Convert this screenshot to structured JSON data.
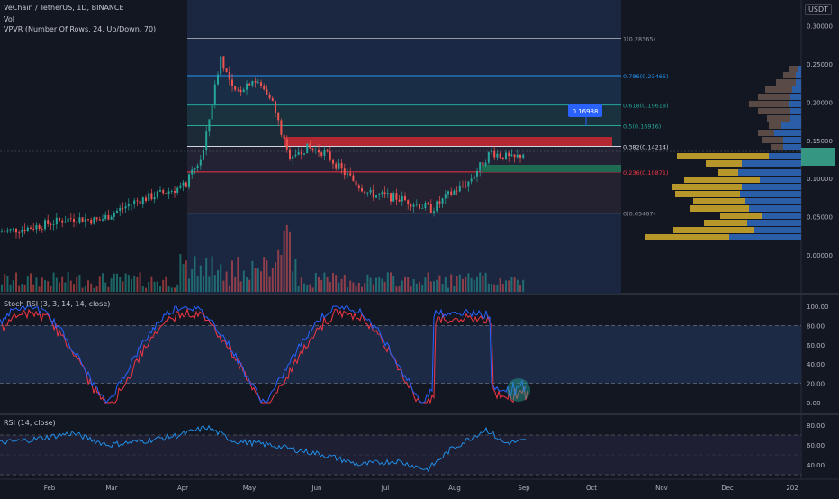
{
  "header": {
    "symbol_line": "VeChain / TetherUS, 1D, BINANCE",
    "vol_label": "Vol",
    "vpvr_label": "VPVR (Number Of Rows, 24, Up/Down, 70)",
    "currency_badge": "USDT"
  },
  "price_axis": {
    "ticks": [
      "0.30000",
      "0.25000",
      "0.20000",
      "0.15000",
      "0.10000",
      "0.05000",
      "0.00000"
    ]
  },
  "fib_levels": [
    {
      "label": "1(0.28365)",
      "value": 0.28365,
      "color": "#9598a1"
    },
    {
      "label": "0.786(0.23465)",
      "value": 0.23465,
      "color": "#2196f3"
    },
    {
      "label": "0.618(0.19618)",
      "value": 0.19618,
      "color": "#26a69a"
    },
    {
      "label": "0.5(0.16916)",
      "value": 0.16916,
      "color": "#26a69a"
    },
    {
      "label": "0.382(0.14214)",
      "value": 0.14214,
      "color": "#d1d4dc"
    },
    {
      "label": "0.236(0.10871)",
      "value": 0.10871,
      "color": "#f23645"
    },
    {
      "label": "0(0.05467)",
      "value": 0.05467,
      "color": "#9598a1"
    }
  ],
  "price_callout": "0.16988",
  "stoch_panel": {
    "legend": "Stoch RSI (3, 3, 14, 14, close)",
    "ticks": [
      "100.00",
      "80.00",
      "60.00",
      "40.00",
      "20.00",
      "0.00"
    ]
  },
  "rsi_panel": {
    "legend": "RSI (14, close)",
    "ticks": [
      "80.00",
      "60.00",
      "40.00"
    ]
  },
  "time_axis": {
    "labels": [
      "Feb",
      "Mar",
      "Apr",
      "May",
      "Jun",
      "Jul",
      "Aug",
      "Sep",
      "Oct",
      "Nov",
      "Dec",
      "202"
    ]
  },
  "colors": {
    "background": "#131722",
    "up": "#26a69a",
    "down": "#ef5350",
    "stoch_k": "#2962ff",
    "stoch_d": "#f23645",
    "rsi_line": "#2196f3",
    "resistance_zone": "#b22833",
    "support_zone": "#1e6b52"
  }
}
